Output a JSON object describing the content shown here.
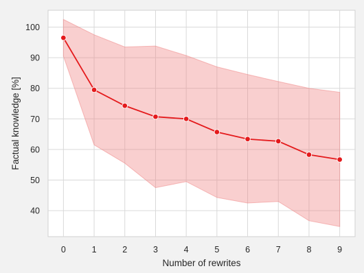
{
  "chart_data": {
    "type": "line",
    "title": "",
    "xlabel": "Number of rewrites",
    "ylabel": "Factual knowledge [%]",
    "x": [
      0,
      1,
      2,
      3,
      4,
      5,
      6,
      7,
      8,
      9
    ],
    "series": [
      {
        "values": [
          96.5,
          79.5,
          74.3,
          70.7,
          70.0,
          65.7,
          63.4,
          62.7,
          58.3,
          56.7
        ],
        "lower": [
          90.5,
          61.5,
          55.5,
          47.5,
          49.5,
          44.3,
          42.5,
          43.0,
          36.7,
          34.8
        ],
        "upper": [
          102.5,
          97.5,
          93.5,
          93.8,
          90.7,
          87.0,
          84.5,
          82.2,
          80.0,
          78.7
        ],
        "color": "#e41a1c",
        "band_color": "#f08080"
      }
    ],
    "xlim": [
      -0.5,
      9.5
    ],
    "ylim": [
      31.5,
      105.5
    ],
    "x_ticks": [
      "0",
      "1",
      "2",
      "3",
      "4",
      "5",
      "6",
      "7",
      "8",
      "9"
    ],
    "y_ticks": [
      "40",
      "50",
      "60",
      "70",
      "80",
      "90",
      "100"
    ],
    "grid": true,
    "background": "#ffffff",
    "grid_color": "#d9d9d9"
  }
}
